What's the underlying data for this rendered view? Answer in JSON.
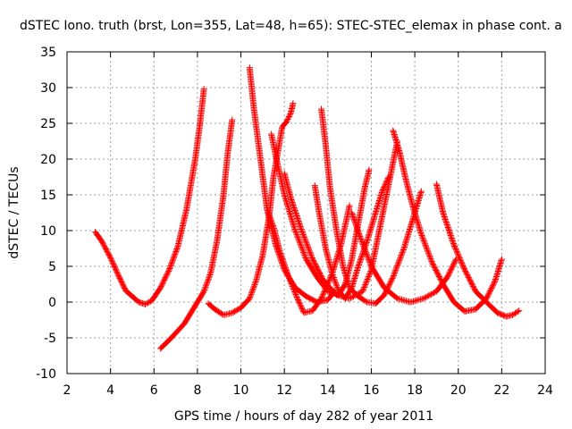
{
  "chart_data": {
    "type": "scatter",
    "title": "dSTEC Iono. truth (brst, Lon=355, Lat=48, h=65): STEC-STEC_elemax in phase cont. a",
    "xlabel": "GPS time / hours of day 282 of year 2011",
    "ylabel": "dSTEC  / TECUs",
    "xlim": [
      2,
      24
    ],
    "ylim": [
      -10,
      35
    ],
    "xticks": [
      2,
      4,
      6,
      8,
      10,
      12,
      14,
      16,
      18,
      20,
      22,
      24
    ],
    "yticks": [
      -10,
      -5,
      0,
      5,
      10,
      15,
      20,
      25,
      30,
      35
    ],
    "grid": true,
    "marker": "plus",
    "color": "#ff0000",
    "series": [
      {
        "points": [
          [
            3.3,
            9.8
          ],
          [
            3.6,
            8.5
          ],
          [
            4.0,
            6.2
          ],
          [
            4.4,
            3.5
          ],
          [
            4.7,
            1.6
          ],
          [
            5.0,
            0.8
          ],
          [
            5.3,
            0.0
          ],
          [
            5.6,
            -0.3
          ],
          [
            5.9,
            0.2
          ],
          [
            6.3,
            2.0
          ],
          [
            6.7,
            4.5
          ],
          [
            7.1,
            7.8
          ],
          [
            7.5,
            13.0
          ],
          [
            7.9,
            20.0
          ],
          [
            8.1,
            24.5
          ],
          [
            8.3,
            29.8
          ]
        ]
      },
      {
        "points": [
          [
            6.3,
            -6.5
          ],
          [
            6.8,
            -5.0
          ],
          [
            7.4,
            -3.0
          ],
          [
            7.9,
            -0.5
          ],
          [
            8.3,
            1.5
          ],
          [
            8.6,
            4.0
          ],
          [
            8.9,
            8.5
          ],
          [
            9.2,
            15.0
          ],
          [
            9.4,
            21.0
          ],
          [
            9.6,
            25.5
          ]
        ]
      },
      {
        "points": [
          [
            8.5,
            -0.2
          ],
          [
            8.8,
            -1.0
          ],
          [
            9.2,
            -1.8
          ],
          [
            9.6,
            -1.5
          ],
          [
            10.0,
            -0.8
          ],
          [
            10.4,
            0.5
          ],
          [
            10.7,
            3.0
          ],
          [
            11.0,
            6.5
          ],
          [
            11.3,
            12.0
          ],
          [
            11.5,
            17.5
          ],
          [
            11.7,
            21.0
          ],
          [
            11.9,
            24.5
          ],
          [
            12.1,
            25.2
          ],
          [
            12.3,
            26.5
          ],
          [
            12.4,
            27.8
          ]
        ]
      },
      {
        "points": [
          [
            10.4,
            32.8
          ],
          [
            10.6,
            27.0
          ],
          [
            10.9,
            20.0
          ],
          [
            11.2,
            13.0
          ],
          [
            11.6,
            8.0
          ],
          [
            12.0,
            4.5
          ],
          [
            12.5,
            2.0
          ],
          [
            13.0,
            0.8
          ],
          [
            13.5,
            0.0
          ],
          [
            14.0,
            0.3
          ],
          [
            14.3,
            1.5
          ]
        ]
      },
      {
        "points": [
          [
            11.4,
            23.5
          ],
          [
            11.6,
            20.5
          ],
          [
            12.0,
            15.0
          ],
          [
            12.5,
            10.0
          ],
          [
            13.0,
            6.0
          ],
          [
            13.5,
            3.5
          ],
          [
            14.0,
            1.5
          ],
          [
            14.5,
            1.0
          ],
          [
            14.8,
            2.5
          ],
          [
            15.1,
            6.0
          ],
          [
            15.4,
            11.0
          ],
          [
            15.7,
            16.0
          ],
          [
            15.9,
            18.5
          ]
        ]
      },
      {
        "points": [
          [
            11.2,
            13.0
          ],
          [
            11.5,
            10.5
          ],
          [
            11.8,
            7.0
          ],
          [
            12.2,
            3.5
          ],
          [
            12.6,
            0.5
          ],
          [
            12.9,
            -1.5
          ],
          [
            13.3,
            -1.2
          ],
          [
            13.7,
            0.5
          ],
          [
            14.2,
            4.0
          ],
          [
            14.6,
            8.0
          ],
          [
            15.0,
            13.5
          ]
        ]
      },
      {
        "points": [
          [
            12.0,
            18.0
          ],
          [
            12.3,
            14.5
          ],
          [
            12.8,
            10.0
          ],
          [
            13.3,
            6.0
          ],
          [
            13.8,
            3.0
          ],
          [
            14.4,
            1.0
          ],
          [
            15.0,
            0.5
          ],
          [
            15.6,
            1.5
          ],
          [
            16.0,
            4.5
          ],
          [
            16.3,
            9.0
          ],
          [
            16.6,
            13.5
          ],
          [
            16.9,
            18.0
          ],
          [
            17.2,
            22.5
          ]
        ]
      },
      {
        "points": [
          [
            13.7,
            27.0
          ],
          [
            13.9,
            22.0
          ],
          [
            14.1,
            16.0
          ],
          [
            14.4,
            10.0
          ],
          [
            14.7,
            5.0
          ],
          [
            15.0,
            2.0
          ],
          [
            15.4,
            0.8
          ],
          [
            15.8,
            0.0
          ],
          [
            16.2,
            -0.2
          ],
          [
            16.6,
            1.0
          ],
          [
            17.0,
            3.5
          ],
          [
            17.5,
            7.5
          ],
          [
            18.0,
            12.5
          ],
          [
            18.3,
            15.5
          ]
        ]
      },
      {
        "points": [
          [
            13.4,
            16.3
          ],
          [
            13.6,
            12.5
          ],
          [
            13.9,
            7.5
          ],
          [
            14.2,
            4.0
          ],
          [
            14.5,
            1.5
          ],
          [
            14.8,
            0.5
          ],
          [
            15.1,
            2.0
          ],
          [
            15.4,
            5.0
          ],
          [
            15.8,
            8.5
          ],
          [
            16.2,
            12.5
          ],
          [
            16.5,
            15.5
          ],
          [
            16.8,
            17.5
          ]
        ]
      },
      {
        "points": [
          [
            15.1,
            12.5
          ],
          [
            15.5,
            9.0
          ],
          [
            16.0,
            5.0
          ],
          [
            16.6,
            2.0
          ],
          [
            17.2,
            0.5
          ],
          [
            17.8,
            0.0
          ],
          [
            18.4,
            0.5
          ],
          [
            19.0,
            1.5
          ],
          [
            19.5,
            3.5
          ],
          [
            19.9,
            6.0
          ]
        ]
      },
      {
        "points": [
          [
            17.0,
            24.0
          ],
          [
            17.3,
            21.0
          ],
          [
            17.6,
            17.0
          ],
          [
            17.9,
            13.5
          ],
          [
            18.3,
            9.5
          ],
          [
            18.8,
            5.5
          ],
          [
            19.3,
            2.5
          ],
          [
            19.8,
            0.0
          ],
          [
            20.3,
            -1.3
          ],
          [
            20.8,
            -1.0
          ],
          [
            21.3,
            0.5
          ],
          [
            21.7,
            3.0
          ],
          [
            22.0,
            6.0
          ]
        ]
      },
      {
        "points": [
          [
            19.0,
            16.5
          ],
          [
            19.3,
            12.5
          ],
          [
            19.8,
            8.0
          ],
          [
            20.3,
            4.5
          ],
          [
            20.8,
            1.5
          ],
          [
            21.3,
            0.0
          ],
          [
            21.8,
            -1.5
          ],
          [
            22.2,
            -2.0
          ],
          [
            22.5,
            -1.8
          ],
          [
            22.8,
            -1.2
          ]
        ]
      }
    ]
  }
}
